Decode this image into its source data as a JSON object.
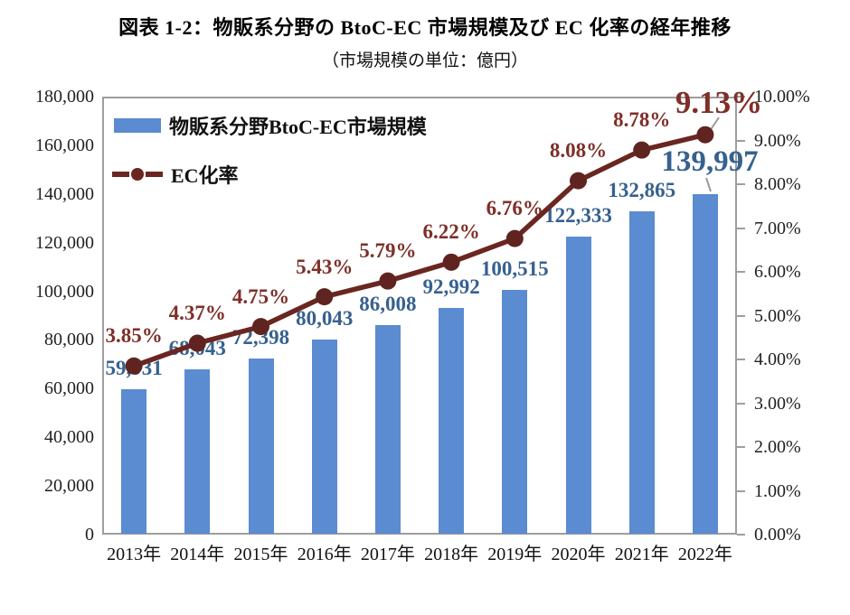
{
  "page": {
    "title": "図表 1-2：物販系分野の BtoC-EC 市場規模及び EC 化率の経年推移",
    "subtitle": "（市場規模の単位：億円）"
  },
  "legend": {
    "bar_label": "物販系分野BtoC-EC市場規模",
    "line_label": "EC化率"
  },
  "colors": {
    "bar": "#5b8bd0",
    "line": "#6a2620",
    "marker": "#5f2420",
    "bar_value_label": "#36618f",
    "rate_label": "#7e2f28",
    "axis": "#9e9e9e",
    "leader": "#9a9a9a"
  },
  "chart_data": {
    "type": "combo-bar-line",
    "title": "図表 1-2：物販系分野の BtoC-EC 市場規模及び EC 化率の経年推移",
    "subtitle": "（市場規模の単位：億円）",
    "categories": [
      "2013年",
      "2014年",
      "2015年",
      "2016年",
      "2017年",
      "2018年",
      "2019年",
      "2020年",
      "2021年",
      "2022年"
    ],
    "series": [
      {
        "name": "物販系分野BtoC-EC市場規模",
        "type": "bar",
        "axis": "left",
        "values": [
          59931,
          68043,
          72398,
          80043,
          86008,
          92992,
          100515,
          122333,
          132865,
          139997
        ],
        "labels": [
          "59,931",
          "68,043",
          "72,398",
          "80,043",
          "86,008",
          "92,992",
          "100,515",
          "122,333",
          "132,865",
          "139,997"
        ]
      },
      {
        "name": "EC化率",
        "type": "line",
        "axis": "right",
        "values": [
          3.85,
          4.37,
          4.75,
          5.43,
          5.79,
          6.22,
          6.76,
          8.08,
          8.78,
          9.13
        ],
        "labels": [
          "3.85%",
          "4.37%",
          "4.75%",
          "5.43%",
          "5.79%",
          "6.22%",
          "6.76%",
          "8.08%",
          "8.78%",
          "9.13%"
        ]
      }
    ],
    "left_axis": {
      "min": 0,
      "max": 180000,
      "step": 20000,
      "tick_labels": [
        "0",
        "20,000",
        "40,000",
        "60,000",
        "80,000",
        "100,000",
        "120,000",
        "140,000",
        "160,000",
        "180,000"
      ]
    },
    "right_axis": {
      "min": 0,
      "max": 10,
      "step": 1,
      "tick_labels": [
        "0.00%",
        "1.00%",
        "2.00%",
        "3.00%",
        "4.00%",
        "5.00%",
        "6.00%",
        "7.00%",
        "8.00%",
        "9.00%",
        "10.00%"
      ]
    },
    "grid": false,
    "legend_position": "inside-top-left",
    "emphasized_last_point": true
  }
}
